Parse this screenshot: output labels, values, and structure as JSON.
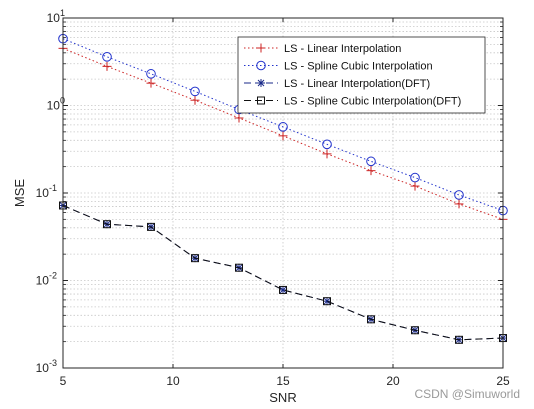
{
  "chart_data": {
    "type": "line",
    "title": "",
    "xlabel": "SNR",
    "ylabel": "MSE",
    "xlim": [
      5,
      25
    ],
    "ylim": [
      0.001,
      10
    ],
    "yscale": "log",
    "grid": true,
    "legend_position": "top-right",
    "x_ticks": [
      5,
      10,
      15,
      20,
      25
    ],
    "x_tick_labels": [
      "5",
      "10",
      "15",
      "20",
      "25"
    ],
    "y_ticks": [
      0.001,
      0.01,
      0.1,
      1,
      10
    ],
    "y_tick_labels": [
      {
        "base": "10",
        "exp": "-3"
      },
      {
        "base": "10",
        "exp": "-2"
      },
      {
        "base": "10",
        "exp": "-1"
      },
      {
        "base": "10",
        "exp": "0"
      },
      {
        "base": "10",
        "exp": "1"
      }
    ],
    "x": [
      5,
      7,
      9,
      11,
      13,
      15,
      17,
      19,
      21,
      23,
      25
    ],
    "series": [
      {
        "name": "LS - Linear Interpolation",
        "values": [
          4.5,
          2.8,
          1.8,
          1.15,
          0.72,
          0.45,
          0.28,
          0.18,
          0.12,
          0.075,
          0.05
        ],
        "color": "#cc2222",
        "line": "dotted",
        "marker": "plus"
      },
      {
        "name": "LS - Spline Cubic Interpolation",
        "values": [
          5.8,
          3.6,
          2.3,
          1.45,
          0.9,
          0.57,
          0.36,
          0.23,
          0.15,
          0.095,
          0.063
        ],
        "color": "#2233cc",
        "line": "dotted",
        "marker": "circle"
      },
      {
        "name": "LS - Linear Interpolation(DFT)",
        "values": [
          0.072,
          0.044,
          0.041,
          0.018,
          0.014,
          0.0078,
          0.0058,
          0.0036,
          0.0027,
          0.0021,
          0.0022
        ],
        "color": "#1a2a8a",
        "line": "dashed",
        "marker": "star"
      },
      {
        "name": "LS - Spline Cubic Interpolation(DFT)",
        "values": [
          0.072,
          0.044,
          0.041,
          0.018,
          0.014,
          0.0078,
          0.0058,
          0.0036,
          0.0027,
          0.0021,
          0.0022
        ],
        "color": "#111111",
        "line": "dashed",
        "marker": "square"
      }
    ]
  },
  "watermark": "CSDN @Simuworld"
}
